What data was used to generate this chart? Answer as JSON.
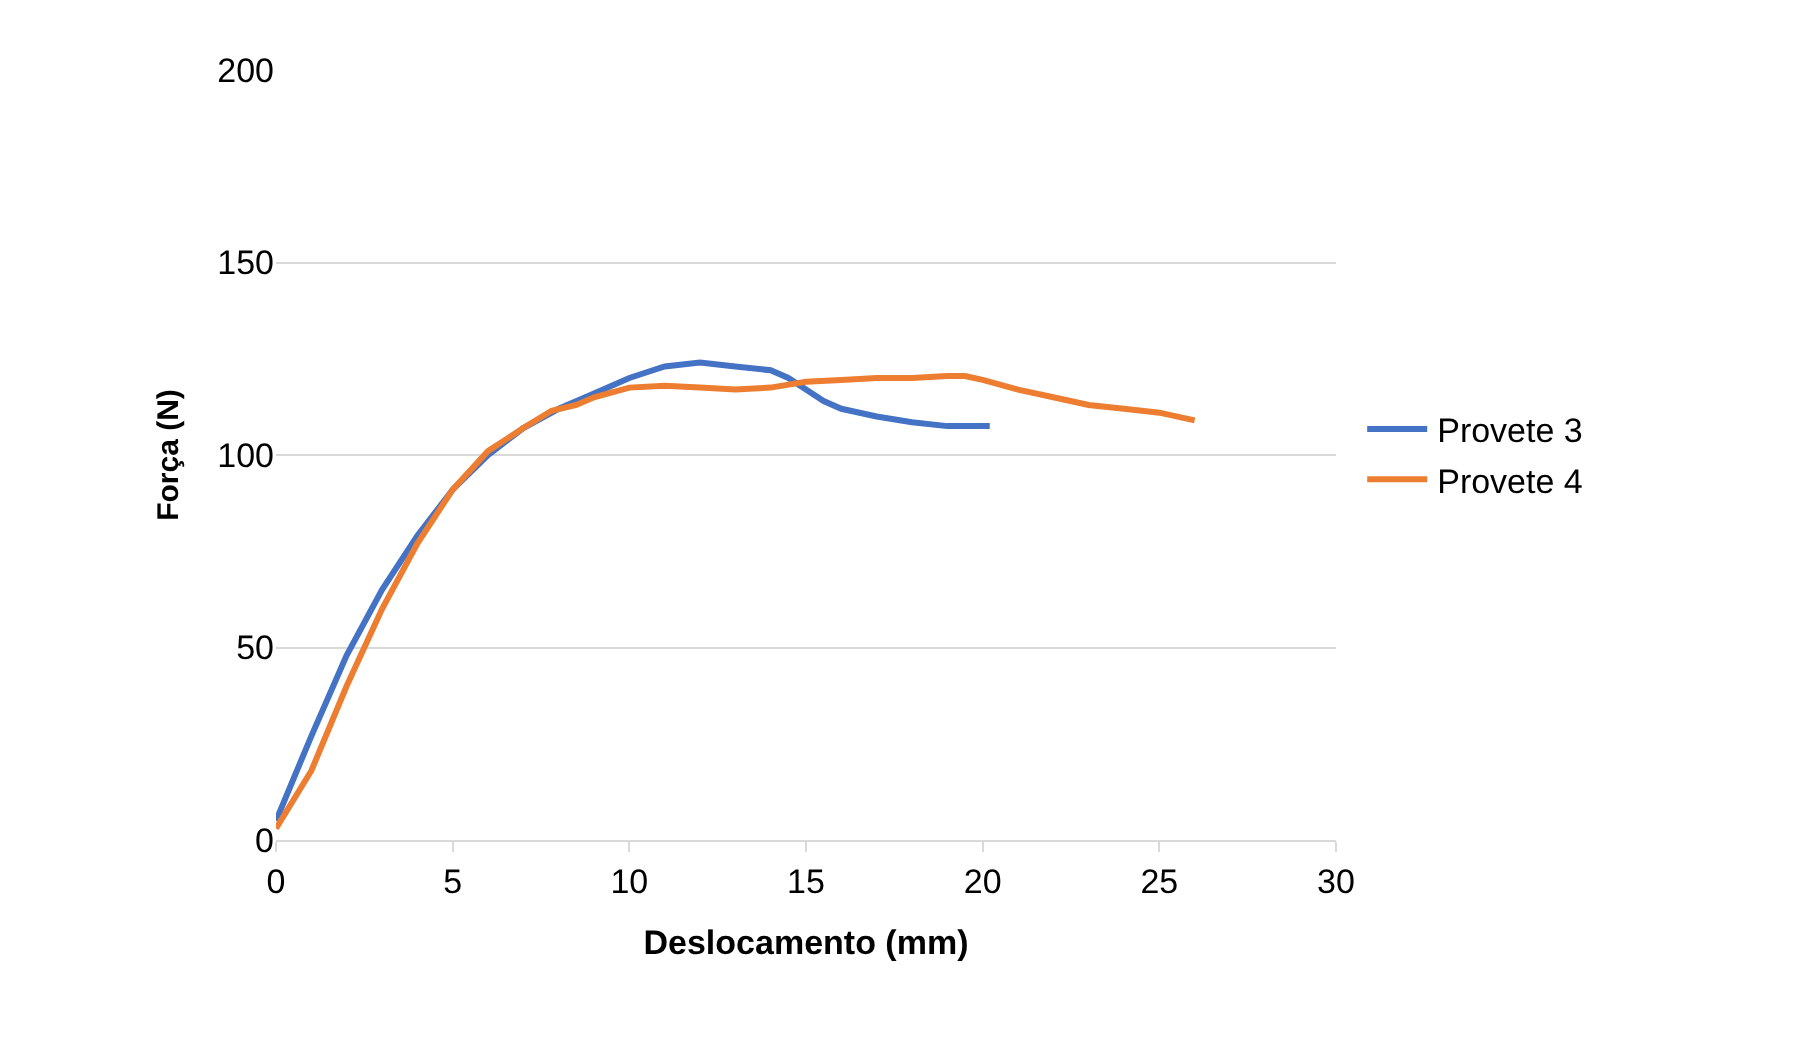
{
  "chart_data": {
    "type": "line",
    "xlabel": "Deslocamento (mm)",
    "ylabel": "Força (N)",
    "xlim": [
      0,
      30
    ],
    "xticks": [
      0,
      5,
      10,
      15,
      20,
      25,
      30
    ],
    "ylim": [
      0,
      200
    ],
    "yticks": [
      0,
      50,
      100,
      150,
      200
    ],
    "grid": "y",
    "legend": "right",
    "marker": "none",
    "line_style": "solid",
    "series": [
      {
        "name": "Provete 3",
        "color": "#4472c4",
        "x": [
          0,
          1,
          2,
          3,
          4,
          5,
          6,
          7,
          8,
          9,
          10,
          11,
          12,
          13,
          14,
          14.5,
          15,
          15.5,
          16,
          17,
          18,
          19,
          20.2
        ],
        "values": [
          5,
          27,
          48,
          65,
          79,
          91,
          100,
          107,
          112,
          116,
          120,
          123,
          124,
          123,
          122,
          120,
          117,
          114,
          112,
          110,
          108.5,
          107.5,
          107.5
        ]
      },
      {
        "name": "Provete 4",
        "color": "#ed7d31",
        "x": [
          0,
          1,
          2,
          3,
          4,
          5,
          6,
          7,
          7.8,
          8.5,
          9,
          10,
          11,
          12,
          13,
          14,
          15,
          16,
          17,
          18,
          19,
          19.5,
          20,
          21,
          22,
          23,
          24,
          25,
          26
        ],
        "values": [
          3,
          18,
          40,
          60,
          77,
          91,
          101,
          107,
          111.5,
          113,
          115,
          117.5,
          118,
          117.5,
          117,
          117.5,
          119,
          119.5,
          120,
          120,
          120.5,
          120.5,
          119.5,
          117,
          115,
          113,
          112,
          111,
          109
        ]
      }
    ]
  }
}
